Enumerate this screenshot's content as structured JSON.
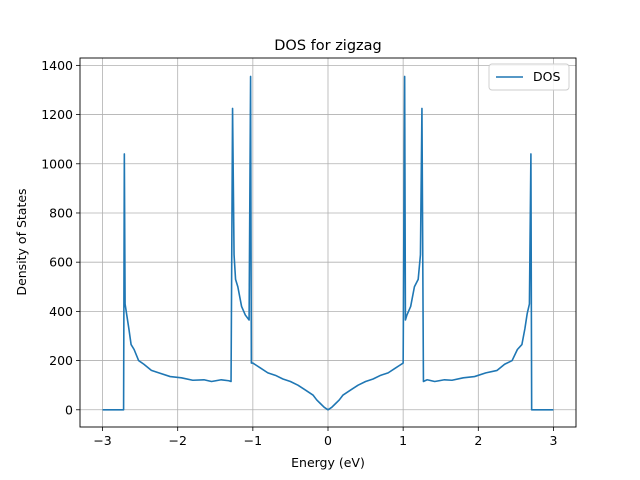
{
  "chart_data": {
    "type": "line",
    "title": "DOS for zigzag",
    "xlabel": "Energy (eV)",
    "ylabel": "Density of States",
    "xlim": [
      -3.3,
      3.3
    ],
    "ylim": [
      -70,
      1430
    ],
    "xticks": [
      -3,
      -2,
      -1,
      0,
      1,
      2,
      3
    ],
    "xtick_labels": [
      "−3",
      "−2",
      "−1",
      "0",
      "1",
      "2",
      "3"
    ],
    "yticks": [
      0,
      200,
      400,
      600,
      800,
      1000,
      1200,
      1400
    ],
    "ytick_labels": [
      "0",
      "200",
      "400",
      "600",
      "800",
      "1000",
      "1200",
      "1400"
    ],
    "grid": true,
    "legend_position": "top-right",
    "color": "#1f77b4",
    "series": [
      {
        "name": "DOS",
        "x": [
          -3.0,
          -2.72,
          -2.71,
          -2.7,
          -2.68,
          -2.65,
          -2.62,
          -2.58,
          -2.52,
          -2.45,
          -2.35,
          -2.25,
          -2.1,
          -1.95,
          -1.8,
          -1.65,
          -1.55,
          -1.42,
          -1.32,
          -1.29,
          -1.27,
          -1.25,
          -1.23,
          -1.2,
          -1.15,
          -1.1,
          -1.05,
          -1.03,
          -1.02,
          -1.0,
          -0.95,
          -0.9,
          -0.8,
          -0.7,
          -0.6,
          -0.5,
          -0.4,
          -0.3,
          -0.2,
          -0.15,
          -0.1,
          -0.05,
          0.0,
          0.05,
          0.1,
          0.15,
          0.2,
          0.3,
          0.4,
          0.5,
          0.6,
          0.7,
          0.8,
          0.9,
          0.95,
          1.0,
          1.02,
          1.03,
          1.05,
          1.1,
          1.15,
          1.2,
          1.23,
          1.25,
          1.27,
          1.29,
          1.32,
          1.42,
          1.55,
          1.65,
          1.8,
          1.95,
          2.1,
          2.25,
          2.35,
          2.45,
          2.52,
          2.58,
          2.62,
          2.65,
          2.68,
          2.7,
          2.71,
          2.72,
          3.0
        ],
        "y": [
          0,
          0,
          1040,
          430,
          390,
          330,
          265,
          245,
          200,
          185,
          160,
          150,
          135,
          130,
          120,
          122,
          115,
          122,
          118,
          115,
          1225,
          630,
          530,
          500,
          420,
          385,
          365,
          1355,
          190,
          190,
          180,
          170,
          150,
          140,
          125,
          115,
          100,
          80,
          60,
          40,
          25,
          10,
          0,
          10,
          25,
          40,
          60,
          80,
          100,
          115,
          125,
          140,
          150,
          170,
          180,
          190,
          1355,
          365,
          385,
          420,
          500,
          530,
          630,
          1225,
          115,
          118,
          122,
          115,
          122,
          120,
          130,
          135,
          150,
          160,
          185,
          200,
          245,
          265,
          330,
          390,
          430,
          1040,
          0,
          0,
          0
        ]
      }
    ]
  }
}
